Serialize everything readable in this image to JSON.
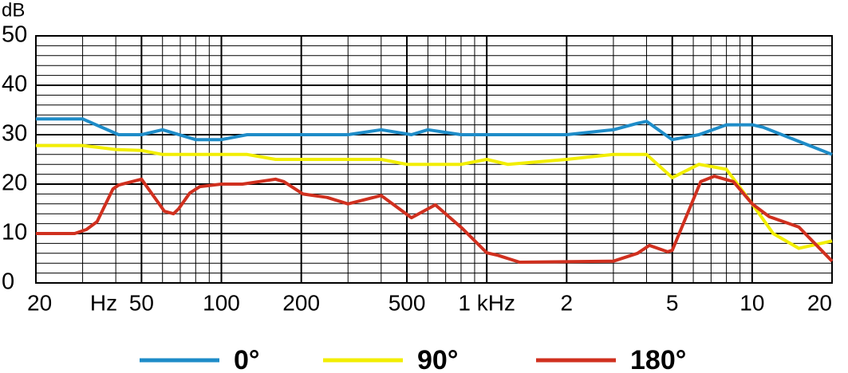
{
  "chart_data": {
    "type": "line",
    "y_label": "dB",
    "x_unit": "Hz",
    "log_x": true,
    "grid": true,
    "xlim": [
      20,
      20000
    ],
    "ylim": [
      0,
      50
    ],
    "xticks": [
      20,
      50,
      100,
      200,
      500,
      {
        "value": 1000,
        "label": "1 kHz"
      },
      {
        "value": 2000,
        "label": "2"
      },
      {
        "value": 5000,
        "label": "5"
      },
      {
        "value": 10000,
        "label": "10"
      },
      {
        "value": 20000,
        "label": "20"
      }
    ],
    "x_minor_ticks": [
      30,
      40,
      60,
      70,
      80,
      90,
      300,
      400,
      600,
      700,
      800,
      900,
      3000,
      4000,
      6000,
      7000,
      8000,
      9000
    ],
    "yticks": [
      0,
      10,
      20,
      30,
      40,
      50
    ],
    "y_minor_ticks": [
      2,
      4,
      6,
      8,
      12,
      14,
      16,
      18,
      22,
      24,
      26,
      28,
      32,
      34,
      36,
      38,
      42,
      44,
      46,
      48
    ],
    "series": [
      {
        "name": "0°",
        "color": "#1e8cc8",
        "x": [
          20,
          30,
          41,
          50,
          60,
          80,
          100,
          125,
          300,
          400,
          520,
          600,
          800,
          2000,
          3000,
          3700,
          4000,
          5000,
          6300,
          8000,
          10000,
          11000,
          20000
        ],
        "values": [
          33.2,
          33.2,
          30,
          30,
          31,
          29,
          29,
          30,
          30,
          31,
          30,
          31,
          30,
          30,
          31,
          32.3,
          32.7,
          29,
          30,
          32,
          32,
          31.5,
          26
        ]
      },
      {
        "name": "90°",
        "color": "#f2ee00",
        "x": [
          20,
          30,
          40,
          50,
          60,
          100,
          125,
          160,
          400,
          500,
          800,
          1000,
          1200,
          2000,
          3000,
          4000,
          5000,
          6300,
          8000,
          10000,
          12000,
          15000,
          20000
        ],
        "values": [
          27.8,
          27.8,
          27,
          26.8,
          26,
          26,
          26,
          25,
          25,
          24,
          24,
          25,
          24,
          25,
          26,
          26,
          21.3,
          24,
          23,
          16,
          10,
          7,
          8.5
        ]
      },
      {
        "name": "180°",
        "color": "#d0301f",
        "x": [
          20,
          28,
          31,
          34,
          39,
          41,
          50,
          61,
          66,
          69,
          76,
          83,
          100,
          120,
          160,
          172,
          203,
          250,
          300,
          400,
          520,
          640,
          810,
          1000,
          1100,
          1330,
          3000,
          3700,
          4100,
          4800,
          5000,
          6400,
          7200,
          8500,
          10000,
          11600,
          15000,
          20000
        ],
        "values": [
          10,
          10,
          10.8,
          12.4,
          19,
          19.8,
          21,
          14.5,
          14,
          15,
          18.2,
          19.5,
          20,
          20,
          21,
          20.5,
          18,
          17.3,
          16,
          17.7,
          13.2,
          15.8,
          11,
          6.1,
          5.6,
          4.2,
          4.4,
          6,
          7.6,
          6.3,
          6.6,
          20.5,
          21.6,
          20.5,
          16,
          13.4,
          11.3,
          4.4
        ]
      }
    ]
  }
}
